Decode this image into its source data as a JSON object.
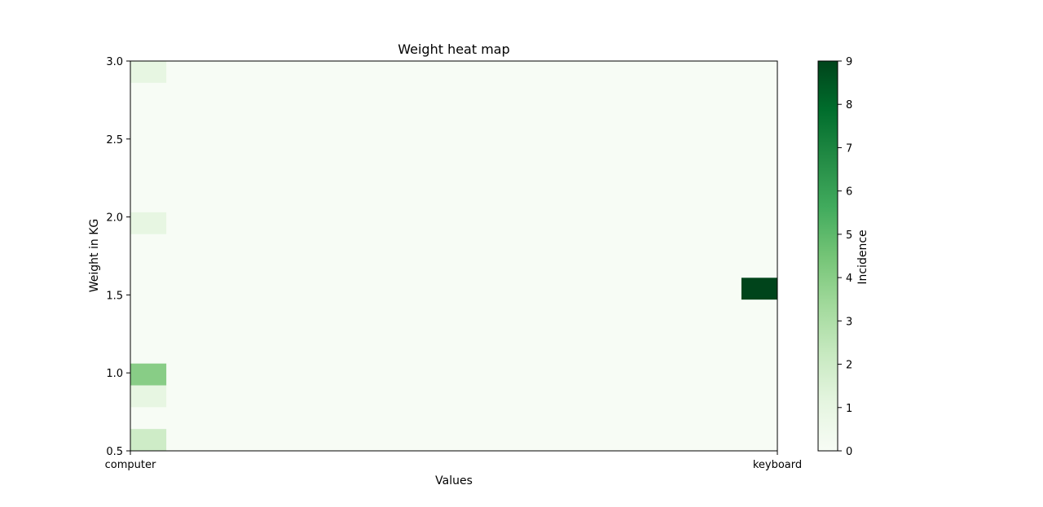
{
  "chart_data": {
    "type": "heatmap",
    "title": "Weight heat map",
    "xlabel": "Values",
    "ylabel": "Weight in KG",
    "x_ticks": [
      "computer",
      "keyboard"
    ],
    "y_ticks": [
      "0.5",
      "1.0",
      "1.5",
      "2.0",
      "2.5",
      "3.0"
    ],
    "ylim": [
      0.5,
      3.0
    ],
    "x_bins": 18,
    "y_bins": 18,
    "colormap": "Greens",
    "colorbar": {
      "label": "Incidence",
      "range": [
        0,
        9
      ],
      "ticks": [
        "0",
        "1",
        "2",
        "3",
        "4",
        "5",
        "6",
        "7",
        "8",
        "9"
      ]
    },
    "background_value": 0,
    "cells": [
      {
        "x": "computer",
        "y_range": [
          0.5,
          0.64
        ],
        "value": 2
      },
      {
        "x": "computer",
        "y_range": [
          0.78,
          0.92
        ],
        "value": 1
      },
      {
        "x": "computer",
        "y_range": [
          0.92,
          1.06
        ],
        "value": 4
      },
      {
        "x": "computer",
        "y_range": [
          1.89,
          2.03
        ],
        "value": 1
      },
      {
        "x": "computer",
        "y_range": [
          2.86,
          3.0
        ],
        "value": 1
      },
      {
        "x": "keyboard",
        "y_range": [
          1.47,
          1.61
        ],
        "value": 9
      }
    ]
  }
}
